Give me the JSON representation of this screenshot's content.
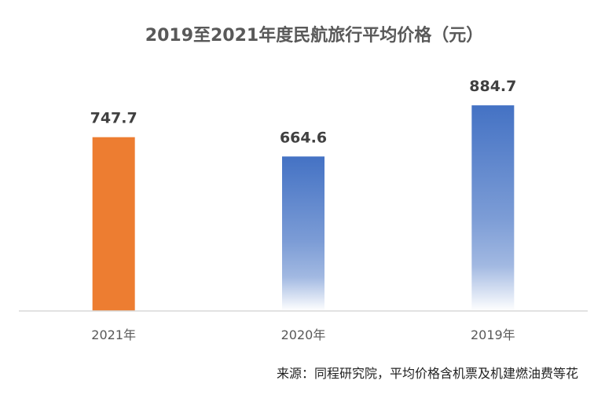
{
  "chart_data": {
    "type": "bar",
    "title": "2019至2021年度民航旅行平均价格（元）",
    "categories": [
      "2021年",
      "2020年",
      "2019年"
    ],
    "values": [
      747.7,
      664.6,
      884.7
    ],
    "value_labels": [
      "747.7",
      "664.6",
      "884.7"
    ],
    "bar_colors": [
      "#ED7D31",
      "#4472C4",
      "#4472C4"
    ],
    "bar_fill_styles": [
      "solid",
      "gradient-fade-down",
      "gradient-fade-down"
    ],
    "ylim": [
      0,
      1000
    ],
    "grid": false,
    "legend": "none"
  },
  "source_note": "来源：同程研究院，平均价格含机票及机建燃油费等花"
}
